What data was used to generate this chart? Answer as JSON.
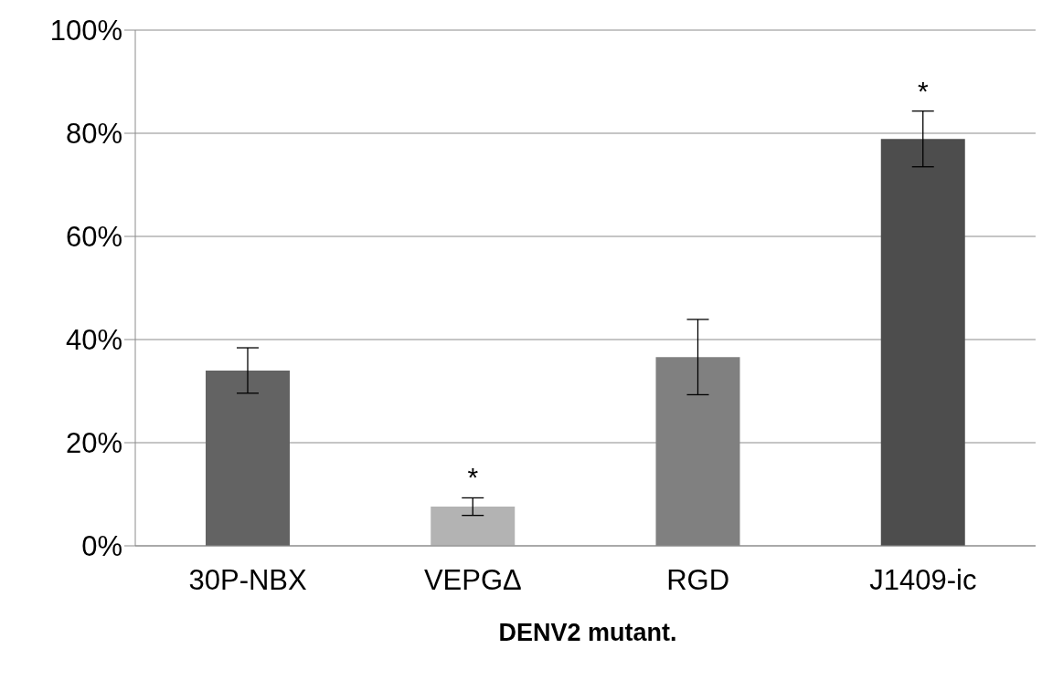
{
  "chart_data": {
    "type": "bar",
    "xlabel": "DENV2 mutant.",
    "categories": [
      "30P-NBX",
      "VEPGΔ",
      "RGD",
      "J1409-ic"
    ],
    "values": [
      34,
      7.6,
      36.6,
      78.9
    ],
    "colors": [
      "#636363",
      "#b3b3b3",
      "#808080",
      "#4d4d4d"
    ],
    "errors": [
      4.4,
      1.7,
      7.3,
      5.4
    ],
    "ylim": [
      0,
      100
    ],
    "yticks": [
      {
        "value": 0,
        "label": "0%"
      },
      {
        "value": 20,
        "label": "20%"
      },
      {
        "value": 40,
        "label": "40%"
      },
      {
        "value": 60,
        "label": "60%"
      },
      {
        "value": 80,
        "label": "80%"
      },
      {
        "value": 100,
        "label": "100%"
      }
    ],
    "grid": "y",
    "legend": false,
    "annotations": [
      {
        "text": "*",
        "x": "VEPGΔ",
        "y": 7.6
      },
      {
        "text": "*",
        "x": "J1409-ic",
        "y": 78.9
      }
    ]
  }
}
